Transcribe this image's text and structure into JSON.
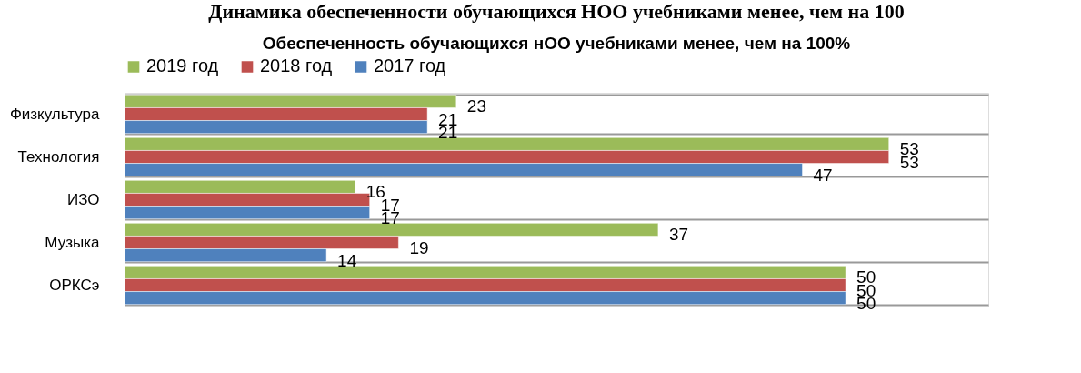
{
  "chart_data": {
    "type": "bar",
    "orientation": "horizontal",
    "title": "Обеспеченность обучающихся нОО учебниками менее, чем на 100%",
    "annotations": [
      "Динамика обеспеченности обучающихся НОО учебниками менее, чем на 100"
    ],
    "categories": [
      "Физкультура",
      "Технология",
      "ИЗО",
      "Музыка",
      "ОРКСэ"
    ],
    "series": [
      {
        "name": "2019 год",
        "color": "#9bbb59",
        "values": [
          23,
          53,
          16,
          37,
          50
        ]
      },
      {
        "name": "2018 год",
        "color": "#c0504d",
        "values": [
          21,
          53,
          17,
          19,
          50
        ]
      },
      {
        "name": "2017 год",
        "color": "#4f81bd",
        "values": [
          21,
          47,
          17,
          14,
          50
        ]
      }
    ],
    "data_labels": true,
    "legend": "top",
    "grid": "y",
    "tick_labels": "y"
  }
}
